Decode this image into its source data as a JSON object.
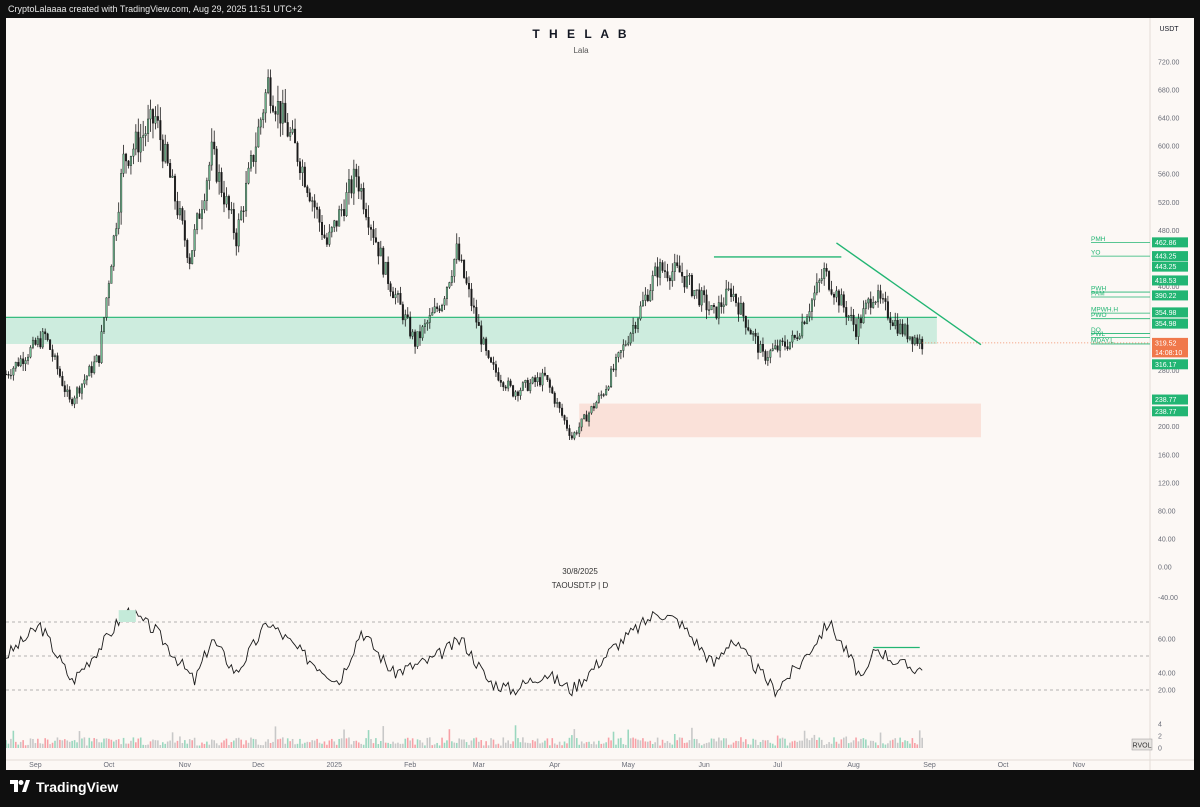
{
  "header": {
    "attribution": "CryptoLalaaaa created with TradingView.com, Aug 29, 2025 11:51 UTC+2"
  },
  "chart_title": "T H E  L A B",
  "chart_subtitle": "Lala",
  "watermark": {
    "date": "30/8/2025",
    "symbol": "TAOUSDT.P  |  D"
  },
  "footer": {
    "brand": "TradingView"
  },
  "currency_label": "USDT",
  "rvol_label": "RVOL",
  "colors": {
    "up": "#089981",
    "down": "#f23645",
    "candle": "#1a1a1a",
    "line": "#22b573",
    "zone_green": "#c4ead9",
    "zone_red": "#f9ddd4",
    "price_tag": "#f0784b"
  },
  "chart_data": {
    "type": "candlestick",
    "ylim": [
      0,
      760
    ],
    "x_ticks": [
      "Sep",
      "Oct",
      "Nov",
      "Dec",
      "2025",
      "Feb",
      "Mar",
      "Apr",
      "May",
      "Jun",
      "Jul",
      "Aug",
      "Sep",
      "Oct",
      "Nov"
    ],
    "y_ticks": [
      0,
      40,
      80,
      120,
      160,
      200,
      240,
      280,
      320,
      360,
      400,
      440,
      480,
      520,
      560,
      600,
      640,
      680,
      720
    ],
    "price_path": [
      {
        "d": "2024-08-20",
        "v": 275
      },
      {
        "d": "2024-09-05",
        "v": 330
      },
      {
        "d": "2024-09-15",
        "v": 235
      },
      {
        "d": "2024-09-27",
        "v": 300
      },
      {
        "d": "2024-10-07",
        "v": 580
      },
      {
        "d": "2024-10-20",
        "v": 640
      },
      {
        "d": "2024-11-03",
        "v": 440
      },
      {
        "d": "2024-11-12",
        "v": 590
      },
      {
        "d": "2024-11-22",
        "v": 470
      },
      {
        "d": "2024-12-05",
        "v": 690
      },
      {
        "d": "2024-12-18",
        "v": 580
      },
      {
        "d": "2024-12-29",
        "v": 460
      },
      {
        "d": "2025-01-10",
        "v": 560
      },
      {
        "d": "2025-01-22",
        "v": 420
      },
      {
        "d": "2025-02-03",
        "v": 320
      },
      {
        "d": "2025-02-14",
        "v": 380
      },
      {
        "d": "2025-02-20",
        "v": 450
      },
      {
        "d": "2025-03-05",
        "v": 290
      },
      {
        "d": "2025-03-15",
        "v": 250
      },
      {
        "d": "2025-03-28",
        "v": 270
      },
      {
        "d": "2025-04-08",
        "v": 185
      },
      {
        "d": "2025-04-21",
        "v": 250
      },
      {
        "d": "2025-05-05",
        "v": 360
      },
      {
        "d": "2025-05-13",
        "v": 425
      },
      {
        "d": "2025-05-22",
        "v": 420
      },
      {
        "d": "2025-06-05",
        "v": 360
      },
      {
        "d": "2025-06-12",
        "v": 395
      },
      {
        "d": "2025-06-25",
        "v": 300
      },
      {
        "d": "2025-07-08",
        "v": 325
      },
      {
        "d": "2025-07-20",
        "v": 420
      },
      {
        "d": "2025-08-02",
        "v": 340
      },
      {
        "d": "2025-08-09",
        "v": 390
      },
      {
        "d": "2025-08-20",
        "v": 340
      },
      {
        "d": "2025-08-29",
        "v": 319.5
      }
    ],
    "zones": [
      {
        "from": "2024-08-20",
        "to": "2025-09-04",
        "low": 318,
        "high": 356,
        "color": "zone_green"
      },
      {
        "from": "2025-04-11",
        "to": "2025-09-22",
        "low": 185,
        "high": 233,
        "color": "zone_red"
      }
    ],
    "trendlines": [
      {
        "from": {
          "d": "2025-07-25",
          "v": 462
        },
        "to": {
          "d": "2025-09-22",
          "v": 317
        }
      },
      {
        "from": {
          "d": "2025-06-05",
          "v": 442
        },
        "to": {
          "d": "2025-07-27",
          "v": 442
        }
      }
    ],
    "level_labels": [
      {
        "text": "PMH",
        "v": 462.86
      },
      {
        "text": "YO",
        "v": 443.25
      },
      {
        "text": "PWH",
        "v": 392
      },
      {
        "text": "PAM",
        "v": 385
      },
      {
        "text": "MPWH.H",
        "v": 362
      },
      {
        "text": "PWO",
        "v": 354
      },
      {
        "text": "DO",
        "v": 333
      },
      {
        "text": "PWL",
        "v": 327
      },
      {
        "text": "MDAY.L",
        "v": 318
      }
    ],
    "price_tags": [
      {
        "text": "462.86",
        "v": 462.86,
        "kind": "green"
      },
      {
        "text": "443.25",
        "v": 443.25,
        "kind": "green"
      },
      {
        "text": "443.25",
        "v": 428.25,
        "kind": "green"
      },
      {
        "text": "418.53",
        "v": 408.53,
        "kind": "green"
      },
      {
        "text": "390.22",
        "v": 387.22,
        "kind": "green"
      },
      {
        "text": "354.98",
        "v": 363,
        "kind": "green"
      },
      {
        "text": "354.98",
        "v": 347,
        "kind": "green"
      },
      {
        "text": "319.52",
        "v": 319.52,
        "kind": "current"
      },
      {
        "text": "14:08:10",
        "v": 306,
        "kind": "current"
      },
      {
        "text": "316.17",
        "v": 289,
        "kind": "green"
      },
      {
        "text": "238.77",
        "v": 238.77,
        "kind": "green"
      },
      {
        "text": "238.77",
        "v": 222,
        "kind": "green"
      }
    ],
    "rsi": {
      "ylim": [
        20,
        80
      ],
      "y_ticks": [
        40,
        60
      ],
      "bands": [
        30,
        50,
        70
      ],
      "path": [
        {
          "d": "2024-08-20",
          "v": 50
        },
        {
          "d": "2024-09-03",
          "v": 68
        },
        {
          "d": "2024-09-16",
          "v": 35
        },
        {
          "d": "2024-09-30",
          "v": 60
        },
        {
          "d": "2024-10-08",
          "v": 77
        },
        {
          "d": "2024-10-20",
          "v": 65
        },
        {
          "d": "2024-11-05",
          "v": 35
        },
        {
          "d": "2024-11-12",
          "v": 60
        },
        {
          "d": "2024-11-22",
          "v": 40
        },
        {
          "d": "2024-12-05",
          "v": 70
        },
        {
          "d": "2024-12-20",
          "v": 50
        },
        {
          "d": "2025-01-03",
          "v": 35
        },
        {
          "d": "2025-01-12",
          "v": 65
        },
        {
          "d": "2025-01-25",
          "v": 40
        },
        {
          "d": "2025-02-10",
          "v": 48
        },
        {
          "d": "2025-02-22",
          "v": 60
        },
        {
          "d": "2025-03-05",
          "v": 35
        },
        {
          "d": "2025-03-15",
          "v": 30
        },
        {
          "d": "2025-03-28",
          "v": 40
        },
        {
          "d": "2025-04-08",
          "v": 30
        },
        {
          "d": "2025-04-25",
          "v": 55
        },
        {
          "d": "2025-05-13",
          "v": 76
        },
        {
          "d": "2025-05-22",
          "v": 70
        },
        {
          "d": "2025-06-05",
          "v": 45
        },
        {
          "d": "2025-06-12",
          "v": 60
        },
        {
          "d": "2025-06-30",
          "v": 30
        },
        {
          "d": "2025-07-10",
          "v": 45
        },
        {
          "d": "2025-07-22",
          "v": 70
        },
        {
          "d": "2025-08-05",
          "v": 35
        },
        {
          "d": "2025-08-10",
          "v": 55
        },
        {
          "d": "2025-08-20",
          "v": 45
        },
        {
          "d": "2025-08-29",
          "v": 42
        }
      ],
      "segment": {
        "from": {
          "d": "2025-08-09",
          "v": 55
        },
        "to": {
          "d": "2025-08-28",
          "v": 55
        }
      }
    },
    "rvol": {
      "ylim": [
        0,
        5
      ],
      "y_ticks": [
        0,
        2,
        4
      ]
    }
  }
}
